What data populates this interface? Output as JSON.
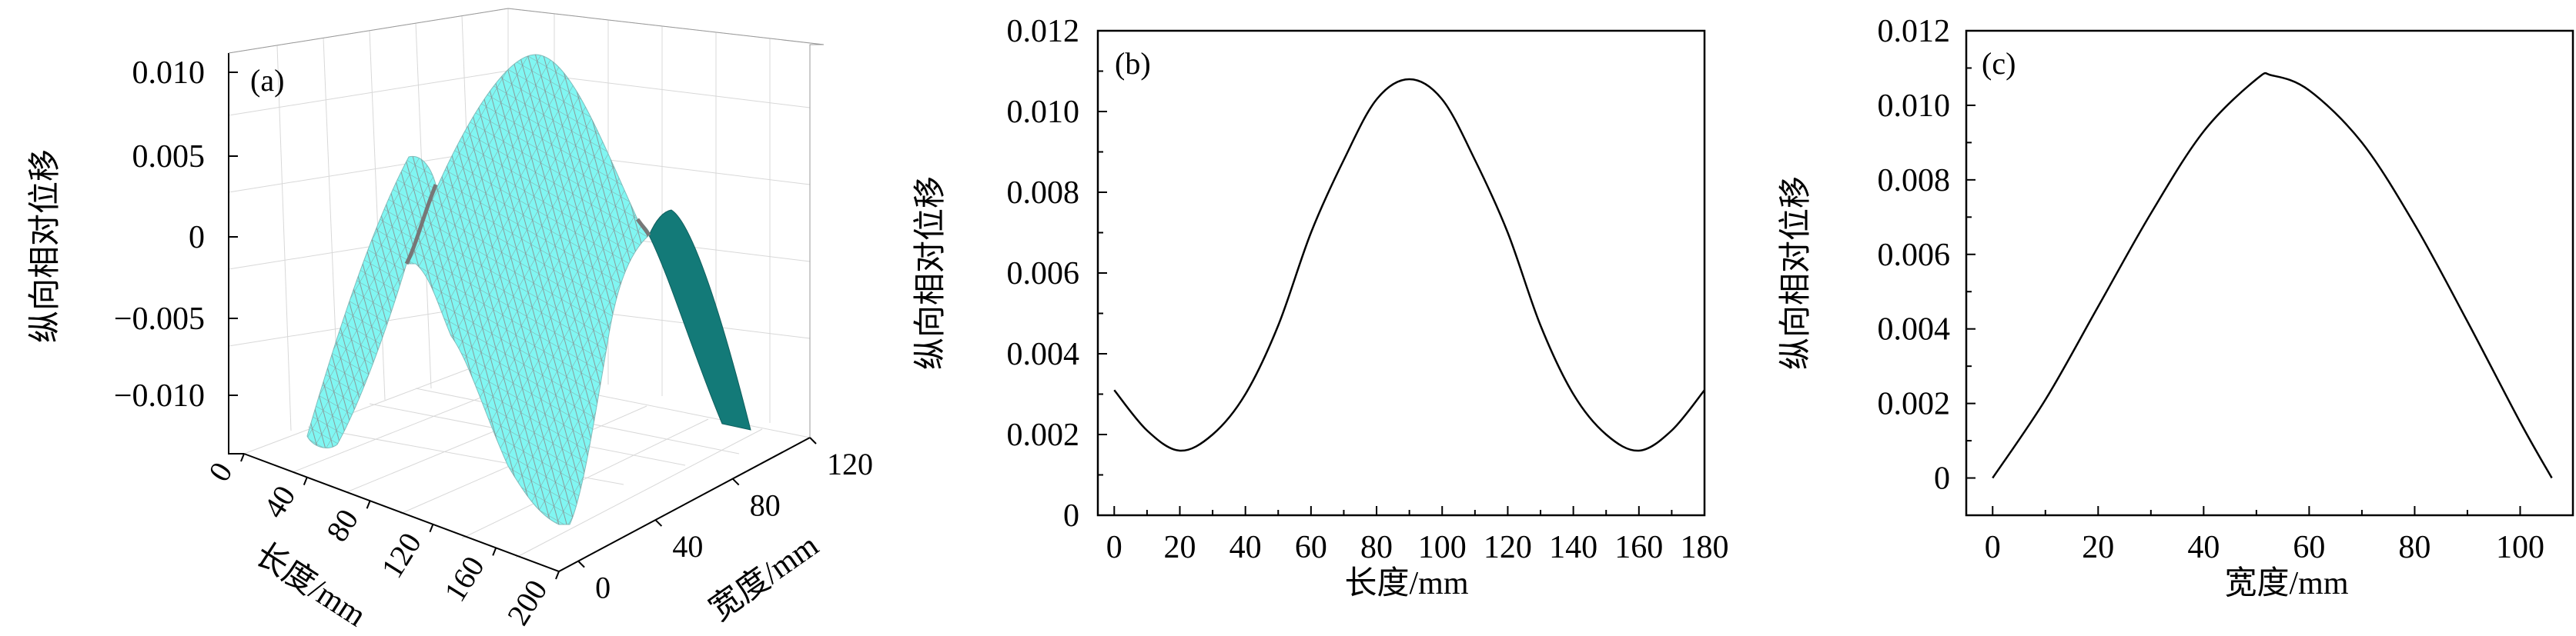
{
  "chart_data": [
    {
      "type": "surface",
      "panel_label": "(a)",
      "xlabel": "长度/mm",
      "ylabel": "宽度/mm",
      "zlabel": "纵向相对位移",
      "x_ticks": [
        "0",
        "40",
        "80",
        "120",
        "160",
        "200"
      ],
      "y_ticks": [
        "0",
        "40",
        "80",
        "120"
      ],
      "z_ticks": [
        "0.010",
        "0.005",
        "0",
        "−0.005",
        "−0.010"
      ],
      "surface_color": "#80f6f2",
      "shade_color": "#137a78",
      "mesh_color": "#8a8a8a",
      "grid": true
    },
    {
      "type": "line",
      "panel_label": "(b)",
      "xlabel": "长度/mm",
      "ylabel": "纵向相对位移",
      "xlim": [
        -5,
        180
      ],
      "ylim": [
        0,
        0.012
      ],
      "x_ticks": [
        0,
        20,
        40,
        60,
        80,
        100,
        120,
        140,
        160,
        180
      ],
      "y_ticks": [
        "0",
        "0.002",
        "0.004",
        "0.006",
        "0.008",
        "0.010",
        "0.012"
      ],
      "grid": false,
      "color": "#000000",
      "x": [
        0,
        10,
        20,
        30,
        40,
        50,
        60,
        70,
        80,
        90,
        100,
        110,
        120,
        130,
        140,
        150,
        160,
        170,
        180
      ],
      "y": [
        0.0031,
        0.0021,
        0.0016,
        0.002,
        0.003,
        0.0047,
        0.007,
        0.0088,
        0.0103,
        0.0108,
        0.0103,
        0.0088,
        0.007,
        0.0047,
        0.003,
        0.002,
        0.0016,
        0.0021,
        0.0031
      ]
    },
    {
      "type": "line",
      "panel_label": "(c)",
      "xlabel": "宽度/mm",
      "ylabel": "纵向相对位移",
      "xlim": [
        -5,
        110
      ],
      "ylim": [
        -0.001,
        0.012
      ],
      "x_ticks": [
        0,
        20,
        40,
        60,
        80,
        100
      ],
      "y_ticks": [
        "0",
        "0.002",
        "0.004",
        "0.006",
        "0.008",
        "0.010",
        "0.012"
      ],
      "grid": false,
      "color": "#000000",
      "x": [
        0,
        10,
        20,
        30,
        40,
        50,
        53,
        60,
        70,
        80,
        90,
        100,
        106
      ],
      "y": [
        0,
        0.0021,
        0.0046,
        0.0071,
        0.0093,
        0.0107,
        0.0108,
        0.0104,
        0.009,
        0.0068,
        0.0042,
        0.0015,
        0
      ]
    }
  ]
}
